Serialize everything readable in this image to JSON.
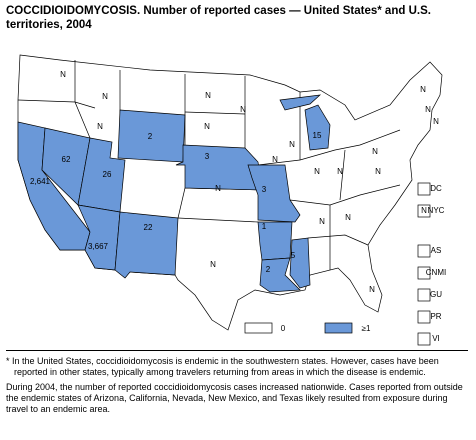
{
  "title": "COCCIDIOIDOMYCOSIS. Number of reported cases — United States* and U.S. territories, 2004",
  "map": {
    "states": [
      {
        "label": "2,641"
      },
      {
        "label": "62"
      },
      {
        "label": "26"
      },
      {
        "label": "3,667"
      },
      {
        "label": "22"
      },
      {
        "label": "2"
      },
      {
        "label": "3"
      },
      {
        "label": "3"
      },
      {
        "label": "1"
      },
      {
        "label": "2"
      },
      {
        "label": "5"
      },
      {
        "label": "15"
      },
      {
        "label": "N"
      },
      {
        "label": "N"
      },
      {
        "label": "N"
      },
      {
        "label": "N"
      },
      {
        "label": "N"
      },
      {
        "label": "N"
      },
      {
        "label": "N"
      },
      {
        "label": "N"
      },
      {
        "label": "N"
      },
      {
        "label": "N"
      },
      {
        "label": "N"
      },
      {
        "label": "N"
      },
      {
        "label": "N"
      },
      {
        "label": "N"
      },
      {
        "label": "N"
      },
      {
        "label": "N"
      },
      {
        "label": "N"
      },
      {
        "label": "N"
      },
      {
        "label": "N"
      },
      {
        "label": "N"
      }
    ]
  },
  "territories": [
    {
      "name": "DC"
    },
    {
      "name": "NYC",
      "label": "N"
    },
    {
      "name": "AS"
    },
    {
      "name": "CNMI"
    },
    {
      "name": "GU"
    },
    {
      "name": "PR"
    },
    {
      "name": "VI"
    }
  ],
  "legend": [
    {
      "label": "0"
    },
    {
      "label": "≥1"
    }
  ],
  "footnote": {
    "marker": "*",
    "text": "In the United States, coccidioidomycosis is endemic in the southwestern states. However, cases have been reported in other states, typically among travelers returning from areas in which the disease is endemic."
  },
  "paragraph": "During 2004, the number of reported coccidioidomycosis cases increased nationwide. Cases reported from outside the endemic states of Arizona, California, Nevada, New Mexico, and Texas likely resulted from exposure during travel to an endemic area."
}
